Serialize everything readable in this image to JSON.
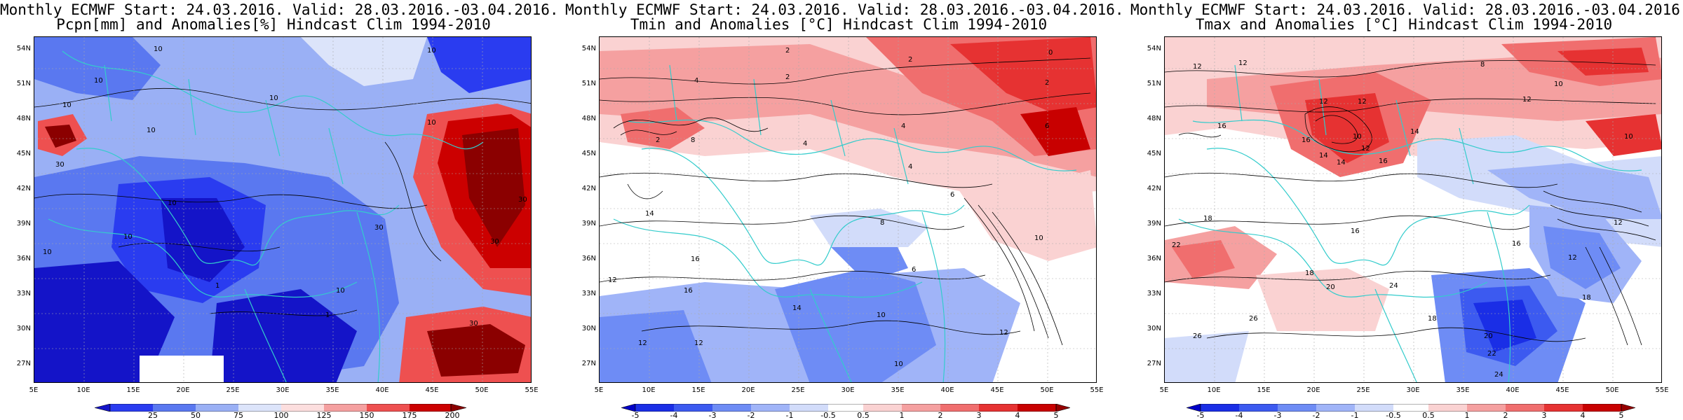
{
  "panels": [
    {
      "title_line1": "Monthly ECMWF Start: 24.03.2016. Valid: 28.03.2016.-03.04.2016.",
      "title_line2": "Pcpn[mm] and Anomalies[%] Hindcast Clim 1994-2010",
      "colorbar_ticks": [
        "25",
        "50",
        "75",
        "100",
        "125",
        "150",
        "175",
        "200"
      ],
      "colorbar_colors": [
        "#1414c8",
        "#2a3cf0",
        "#5a78f0",
        "#9ab0f5",
        "#dce4fa",
        "#fcdede",
        "#f5a0a0",
        "#ee5050",
        "#cc0000",
        "#8b0000"
      ],
      "contour_labels": [
        "10",
        "10",
        "10",
        "10",
        "10",
        "10",
        "30",
        "10",
        "10",
        "10",
        "30",
        "10",
        "10",
        "1",
        "1",
        "30",
        "30",
        "30"
      ]
    },
    {
      "title_line1": "Monthly ECMWF Start: 24.03.2016. Valid: 28.03.2016.-03.04.2016.",
      "title_line2": "Tmin and Anomalies [°C] Hindcast Clim 1994-2010",
      "colorbar_ticks": [
        "-5",
        "-4",
        "-3",
        "-2",
        "-1",
        "-0.5",
        "0.5",
        "1",
        "2",
        "3",
        "4",
        "5"
      ],
      "colorbar_colors": [
        "#0000c8",
        "#1a2ee6",
        "#3c5af0",
        "#6e8cf5",
        "#a0b4f8",
        "#d2dcfa",
        "#ffffff",
        "#fad2d2",
        "#f5a0a0",
        "#f06e6e",
        "#e63232",
        "#c80000",
        "#960000"
      ],
      "contour_labels": [
        "2",
        "4",
        "2",
        "2",
        "0",
        "2",
        "6",
        "8",
        "4",
        "4",
        "2",
        "4",
        "6",
        "8",
        "10",
        "14",
        "12",
        "12",
        "16",
        "14",
        "12",
        "10",
        "12",
        "16",
        "10",
        "6"
      ]
    },
    {
      "title_line1": "Monthly ECMWF Start: 24.03.2016. Valid: 28.03.2016.-03.04.2016.",
      "title_line2": "Tmax and Anomalies [°C] Hindcast Clim 1994-2010",
      "colorbar_ticks": [
        "-5",
        "-4",
        "-3",
        "-2",
        "-1",
        "-0.5",
        "0.5",
        "1",
        "2",
        "3",
        "4",
        "5"
      ],
      "colorbar_colors": [
        "#0000c8",
        "#1a2ee6",
        "#3c5af0",
        "#6e8cf5",
        "#a0b4f8",
        "#d2dcfa",
        "#ffffff",
        "#fad2d2",
        "#f5a0a0",
        "#f06e6e",
        "#e63232",
        "#c80000",
        "#960000"
      ],
      "contour_labels": [
        "12",
        "12",
        "8",
        "10",
        "12",
        "12",
        "16",
        "14",
        "10",
        "14",
        "16",
        "12",
        "14",
        "16",
        "12",
        "10",
        "18",
        "16",
        "12",
        "22",
        "16",
        "18",
        "24",
        "26",
        "20",
        "22",
        "20",
        "24",
        "18",
        "26",
        "12",
        "18"
      ]
    }
  ],
  "lat_ticks": [
    "54N",
    "51N",
    "48N",
    "45N",
    "42N",
    "39N",
    "36N",
    "33N",
    "30N",
    "27N"
  ],
  "lon_ticks": [
    "5E",
    "10E",
    "15E",
    "20E",
    "25E",
    "30E",
    "35E",
    "40E",
    "45E",
    "50E",
    "55E"
  ]
}
